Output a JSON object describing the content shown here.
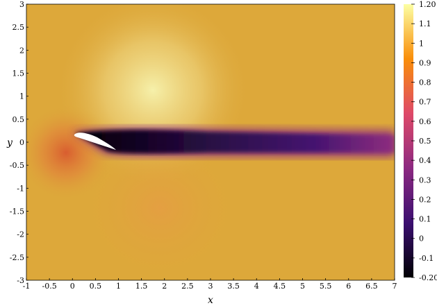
{
  "chart_data": {
    "type": "heatmap",
    "xlabel": "x",
    "ylabel": "y",
    "xlim": [
      -1,
      7
    ],
    "ylim": [
      -3,
      3
    ],
    "x_ticks": [
      "-1",
      "-0.5",
      "0",
      "0.5",
      "1",
      "1.5",
      "2",
      "2.5",
      "3",
      "3.5",
      "4",
      "4.5",
      "5",
      "5.5",
      "6",
      "6.5",
      "7"
    ],
    "y_ticks": [
      "3",
      "2.5",
      "2",
      "1.5",
      "1",
      "0.5",
      "0",
      "-0.5",
      "-1",
      "-1.5",
      "-2",
      "-2.5",
      "-3"
    ],
    "colorbar": {
      "range": [
        -0.2,
        1.2
      ],
      "ticks": [
        "1.20",
        "1.1",
        "1",
        "0.9",
        "0.8",
        "0.7",
        "0.6",
        "0.5",
        "0.4",
        "0.3",
        "0.2",
        "0.1",
        "0",
        "-0.1",
        "-0.20"
      ],
      "colormap": "inferno",
      "colors": [
        "#000004",
        "#3b0f70",
        "#8c2981",
        "#de4968",
        "#f98e09",
        "#fcffa4"
      ]
    },
    "field": {
      "freestream_value": 0.97,
      "wake_min_value": -0.2,
      "stagnation_value": 0.6,
      "suction_max_value": 1.2,
      "colors": {
        "freestream": "#dda83a",
        "wake_core": "#000004",
        "stagnation": "#e26a35",
        "suction": "#f3ec9f"
      }
    },
    "airfoil": {
      "leading_edge": [
        0.05,
        0.17
      ],
      "trailing_edge": [
        1.0,
        -0.17
      ],
      "color": "#ffffff"
    }
  }
}
